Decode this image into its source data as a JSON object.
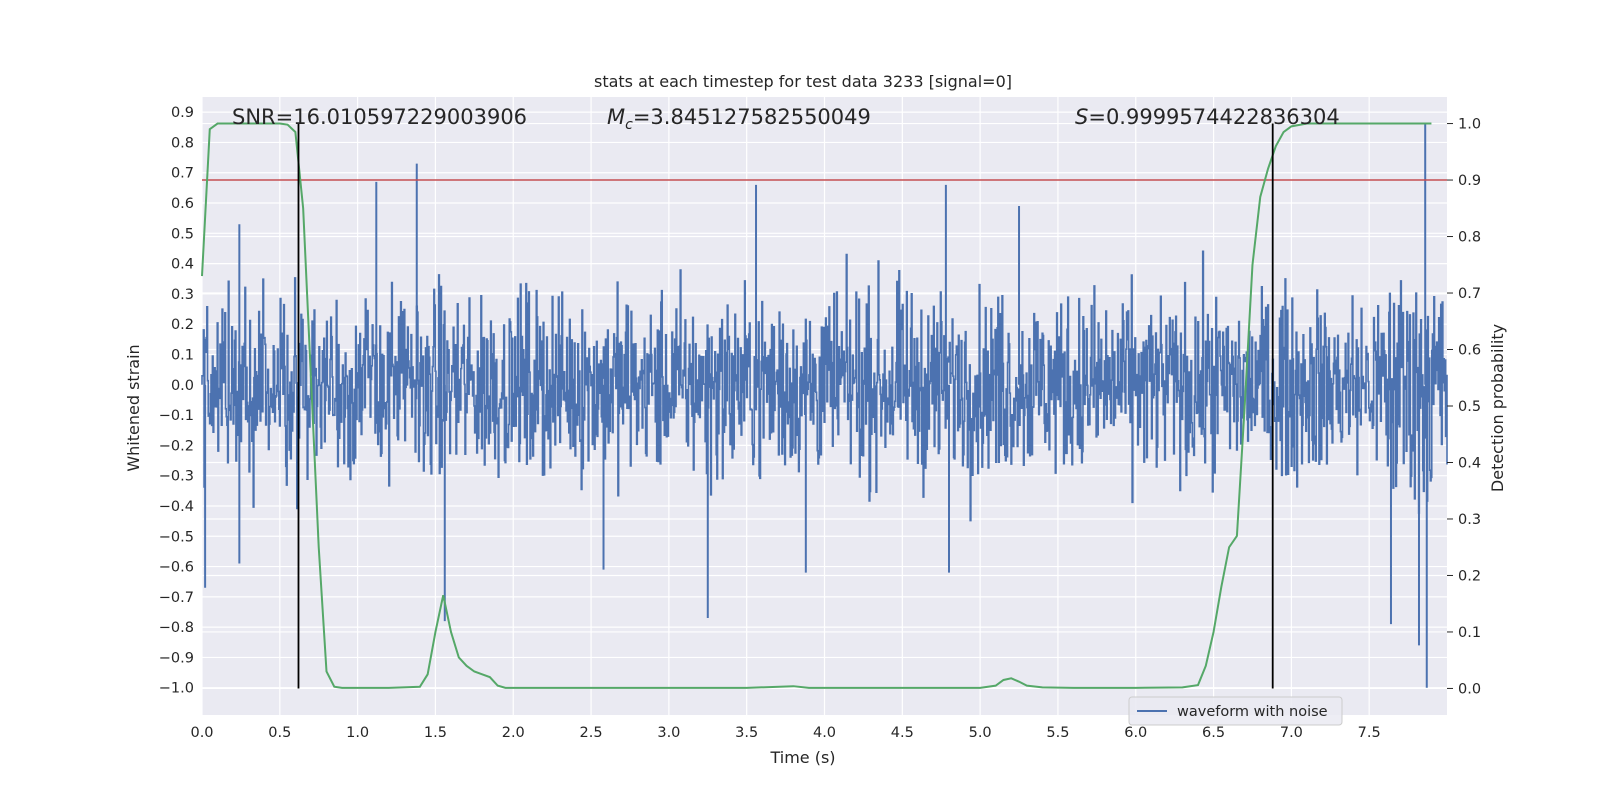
{
  "chart_data": {
    "type": "line",
    "title": "stats at each timestep for test data 3233 [signal=0]",
    "xlabel": "Time (s)",
    "ylabel": "Whitened strain",
    "y2label": "Detection probability",
    "xlim": [
      0.0,
      8.0
    ],
    "ylim": [
      -1.09,
      0.95
    ],
    "y2lim": [
      -0.047,
      1.047
    ],
    "x_ticks": [
      0.0,
      0.5,
      1.0,
      1.5,
      2.0,
      2.5,
      3.0,
      3.5,
      4.0,
      4.5,
      5.0,
      5.5,
      6.0,
      6.5,
      7.0,
      7.5
    ],
    "x_tick_labels": [
      "0.0",
      "0.5",
      "1.0",
      "1.5",
      "2.0",
      "2.5",
      "3.0",
      "3.5",
      "4.0",
      "4.5",
      "5.0",
      "5.5",
      "6.0",
      "6.5",
      "7.0",
      "7.5"
    ],
    "y_ticks": [
      0.9,
      0.8,
      0.7,
      0.6,
      0.5,
      0.4,
      0.3,
      0.2,
      0.1,
      0.0,
      -0.1,
      -0.2,
      -0.3,
      -0.4,
      -0.5,
      -0.6,
      -0.7,
      -0.8,
      -0.9,
      -1.0
    ],
    "y_tick_labels": [
      "0.9",
      "0.8",
      "0.7",
      "0.6",
      "0.5",
      "0.4",
      "0.3",
      "0.2",
      "0.1",
      "0.0",
      "−0.1",
      "−0.2",
      "−0.3",
      "−0.4",
      "−0.5",
      "−0.6",
      "−0.7",
      "−0.8",
      "−0.9",
      "−1.0"
    ],
    "y2_ticks": [
      1.0,
      0.9,
      0.8,
      0.7,
      0.6,
      0.5,
      0.4,
      0.3,
      0.2,
      0.1,
      0.0
    ],
    "y2_tick_labels": [
      "1.0",
      "0.9",
      "0.8",
      "0.7",
      "0.6",
      "0.5",
      "0.4",
      "0.3",
      "0.2",
      "0.1",
      "0.0"
    ],
    "grid": true,
    "legend": {
      "placement": "lower-right",
      "entries": [
        "waveform with noise"
      ]
    },
    "annotations": {
      "snr": "SNR=16.010597229003906",
      "mc_symbol": "M",
      "mc_subscript": "c",
      "mc_value": "=3.845127582550049",
      "s_symbol": "S",
      "s_value": "=0.9999574422836304"
    },
    "threshold_probability": 0.9,
    "vertical_markers_time": [
      0.62,
      6.88
    ],
    "waveform": {
      "name": "waveform with noise",
      "color": "#4c72b0",
      "t_start": 0.0,
      "t_end": 8.0,
      "typical_envelope": 0.3,
      "peaks": [
        {
          "t": 0.02,
          "v": -0.67
        },
        {
          "t": 0.24,
          "v": 0.53
        },
        {
          "t": 0.24,
          "v": -0.59
        },
        {
          "t": 1.12,
          "v": 0.67
        },
        {
          "t": 1.38,
          "v": 0.73
        },
        {
          "t": 1.56,
          "v": -0.78
        },
        {
          "t": 2.58,
          "v": -0.61
        },
        {
          "t": 3.25,
          "v": -0.77
        },
        {
          "t": 3.56,
          "v": 0.66
        },
        {
          "t": 3.88,
          "v": -0.62
        },
        {
          "t": 4.78,
          "v": 0.66
        },
        {
          "t": 4.8,
          "v": -0.62
        },
        {
          "t": 5.25,
          "v": 0.59
        },
        {
          "t": 7.64,
          "v": -0.79
        },
        {
          "t": 7.82,
          "v": -0.86
        },
        {
          "t": 7.86,
          "v": 0.86
        },
        {
          "t": 7.87,
          "v": -1.0
        }
      ]
    },
    "probability": {
      "color": "#55a868",
      "t": [
        0.0,
        0.05,
        0.1,
        0.2,
        0.3,
        0.4,
        0.5,
        0.55,
        0.6,
        0.65,
        0.7,
        0.75,
        0.8,
        0.85,
        0.9,
        1.0,
        1.2,
        1.4,
        1.45,
        1.5,
        1.55,
        1.6,
        1.65,
        1.7,
        1.75,
        1.8,
        1.85,
        1.9,
        1.95,
        2.0,
        2.5,
        2.8,
        3.0,
        3.2,
        3.5,
        3.8,
        3.9,
        4.0,
        4.5,
        5.0,
        5.1,
        5.15,
        5.2,
        5.25,
        5.3,
        5.4,
        5.6,
        6.0,
        6.3,
        6.4,
        6.45,
        6.5,
        6.55,
        6.6,
        6.65,
        6.7,
        6.75,
        6.8,
        6.85,
        6.9,
        6.95,
        7.0,
        7.1,
        7.2,
        7.3,
        7.5,
        7.7,
        7.9
      ],
      "p": [
        0.73,
        0.99,
        1.0,
        1.0,
        1.0,
        1.0,
        1.0,
        0.998,
        0.985,
        0.85,
        0.55,
        0.25,
        0.03,
        0.003,
        0.001,
        0.001,
        0.001,
        0.003,
        0.025,
        0.1,
        0.165,
        0.1,
        0.055,
        0.04,
        0.03,
        0.025,
        0.02,
        0.005,
        0.001,
        0.001,
        0.001,
        0.001,
        0.001,
        0.001,
        0.001,
        0.004,
        0.001,
        0.001,
        0.001,
        0.001,
        0.005,
        0.015,
        0.018,
        0.012,
        0.005,
        0.002,
        0.001,
        0.001,
        0.002,
        0.006,
        0.04,
        0.1,
        0.18,
        0.25,
        0.27,
        0.5,
        0.75,
        0.87,
        0.92,
        0.96,
        0.985,
        0.995,
        1.0,
        1.0,
        1.0,
        1.0,
        1.0,
        1.0
      ]
    },
    "colors": {
      "axes_background": "#eaeaf2",
      "grid": "#ffffff",
      "threshold_line": "#c44e52",
      "marker_line": "#000000"
    }
  }
}
